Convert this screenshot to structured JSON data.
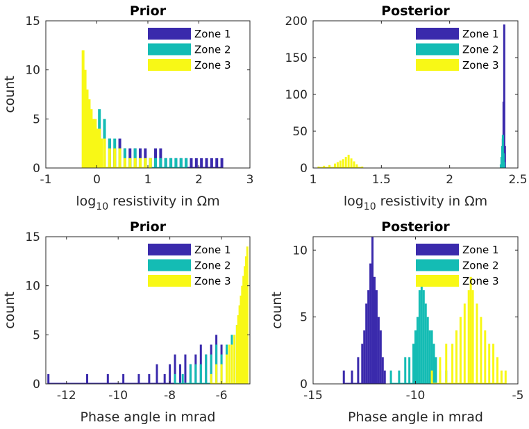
{
  "chart_data": [
    {
      "type": "bar",
      "title": "Prior",
      "xlabel": "log10 resistivity in Ωm",
      "xlabel_main": "log",
      "xlabel_sub": "10",
      "xlabel_rest": " resistivity in Ωm",
      "ylabel": "count",
      "xlim": [
        -1,
        3
      ],
      "ylim": [
        0,
        15
      ],
      "xticks": [
        "-1",
        "0",
        "1",
        "2",
        "3"
      ],
      "yticks": [
        "0",
        "5",
        "10",
        "15"
      ],
      "grid": false,
      "legend_position": "top-right",
      "series": [
        {
          "name": "Zone 1",
          "color": "#3a2aac",
          "x": [
            0.05,
            0.15,
            0.25,
            0.35,
            0.45,
            0.55,
            0.65,
            0.75,
            0.85,
            0.95,
            1.05,
            1.15,
            1.25,
            1.35,
            1.45,
            1.55,
            1.65,
            1.75,
            1.85,
            1.95,
            2.05,
            2.15,
            2.25,
            2.35,
            2.45
          ],
          "y": [
            4,
            4,
            3,
            2,
            3,
            2,
            2,
            2,
            2,
            2,
            1,
            2,
            2,
            1,
            1,
            1,
            1,
            1,
            1,
            1,
            1,
            1,
            1,
            1,
            1
          ]
        },
        {
          "name": "Zone 2",
          "color": "#14bcb4",
          "x": [
            -0.25,
            -0.15,
            -0.05,
            0.05,
            0.15,
            0.25,
            0.35,
            0.45,
            0.55,
            0.65,
            0.75,
            0.85,
            0.95,
            1.05,
            1.15,
            1.25,
            1.35,
            1.45,
            1.55,
            1.65,
            1.75
          ],
          "y": [
            6,
            5,
            4,
            6,
            5,
            3,
            3,
            2,
            2,
            1,
            2,
            1,
            1,
            1,
            1,
            1,
            1,
            1,
            1,
            1,
            1
          ]
        },
        {
          "name": "Zone 3",
          "color": "#f8f816",
          "x": [
            -0.27,
            -0.23,
            -0.19,
            -0.15,
            -0.11,
            -0.07,
            -0.03,
            0.01,
            0.05,
            0.09,
            0.15,
            0.25,
            0.35,
            0.45,
            0.55,
            0.65,
            0.75,
            0.85,
            0.95,
            1.05
          ],
          "y": [
            12,
            10,
            8,
            7,
            6,
            5,
            5,
            4,
            4,
            3,
            3,
            2,
            2,
            2,
            1,
            1,
            1,
            1,
            1,
            1
          ]
        }
      ]
    },
    {
      "type": "bar",
      "title": "Posterior",
      "xlabel": "log10 resistivity in Ωm",
      "xlabel_main": "log",
      "xlabel_sub": "10",
      "xlabel_rest": " resistivity in Ωm",
      "ylabel": "",
      "xlim": [
        1,
        2.5
      ],
      "ylim": [
        0,
        200
      ],
      "xticks": [
        "1",
        "1.5",
        "2",
        "2.5"
      ],
      "yticks": [
        "0",
        "50",
        "100",
        "150",
        "200"
      ],
      "grid": false,
      "legend_position": "top-right",
      "series": [
        {
          "name": "Zone 1",
          "color": "#3a2aac",
          "x": [
            2.385,
            2.39,
            2.395,
            2.4,
            2.405
          ],
          "y": [
            10,
            40,
            90,
            195,
            30
          ]
        },
        {
          "name": "Zone 2",
          "color": "#14bcb4",
          "x": [
            2.375,
            2.38,
            2.385,
            2.39,
            2.395,
            2.4
          ],
          "y": [
            5,
            15,
            30,
            45,
            20,
            8
          ]
        },
        {
          "name": "Zone 3",
          "color": "#f8f816",
          "x": [
            1.04,
            1.08,
            1.12,
            1.16,
            1.18,
            1.2,
            1.22,
            1.24,
            1.26,
            1.28,
            1.3,
            1.32,
            1.36
          ],
          "y": [
            2,
            3,
            4,
            6,
            8,
            10,
            12,
            15,
            18,
            13,
            9,
            5,
            2
          ]
        }
      ]
    },
    {
      "type": "bar",
      "title": "Prior",
      "xlabel": "Phase angle in mrad",
      "ylabel": "count",
      "xlim": [
        -12.8,
        -4.9
      ],
      "ylim": [
        0,
        15
      ],
      "xticks": [
        "-12",
        "-10",
        "-8",
        "-6"
      ],
      "yticks": [
        "0",
        "5",
        "10",
        "15"
      ],
      "grid": false,
      "legend_position": "top-right",
      "series": [
        {
          "name": "Zone 1",
          "color": "#3a2aac",
          "x": [
            -12.7,
            -11.2,
            -10.4,
            -9.8,
            -9.2,
            -8.8,
            -8.5,
            -8.2,
            -8.0,
            -7.8,
            -7.6,
            -7.4,
            -7.2,
            -7.0,
            -6.8,
            -6.6,
            -6.4,
            -6.2,
            -6.0
          ],
          "y": [
            1,
            1,
            1,
            1,
            1,
            1,
            2,
            1,
            2,
            3,
            2,
            3,
            2,
            3,
            4,
            3,
            4,
            5,
            4
          ]
        },
        {
          "name": "Zone 2",
          "color": "#14bcb4",
          "x": [
            -7.8,
            -7.5,
            -7.2,
            -7.0,
            -6.8,
            -6.6,
            -6.4,
            -6.2,
            -6.0,
            -5.8,
            -5.6,
            -5.4
          ],
          "y": [
            1,
            1,
            2,
            2,
            2,
            3,
            3,
            4,
            3,
            4,
            5,
            6
          ]
        },
        {
          "name": "Zone 3",
          "color": "#f8f816",
          "x": [
            -6.4,
            -6.2,
            -6.0,
            -5.8,
            -5.7,
            -5.6,
            -5.5,
            -5.4,
            -5.35,
            -5.3,
            -5.25,
            -5.2,
            -5.15,
            -5.1,
            -5.05,
            -5.0
          ],
          "y": [
            1,
            2,
            2,
            3,
            4,
            4,
            5,
            6,
            7,
            8,
            9,
            10,
            11,
            12,
            13,
            14
          ]
        }
      ]
    },
    {
      "type": "bar",
      "title": "Posterior",
      "xlabel": "Phase angle in mrad",
      "ylabel": "count",
      "xlim": [
        -15,
        -5
      ],
      "ylim": [
        0,
        11
      ],
      "xticks": [
        "-15",
        "-10",
        "-5"
      ],
      "yticks": [
        "0",
        "5",
        "10"
      ],
      "grid": false,
      "legend_position": "top-right",
      "series": [
        {
          "name": "Zone 1",
          "color": "#3a2aac",
          "x": [
            -13.5,
            -13.1,
            -12.8,
            -12.6,
            -12.5,
            -12.4,
            -12.3,
            -12.2,
            -12.1,
            -12.0,
            -11.9,
            -11.8,
            -11.7,
            -11.6,
            -11.5
          ],
          "y": [
            1,
            1,
            2,
            3,
            4,
            6,
            7,
            9,
            11,
            8,
            7,
            5,
            4,
            2,
            1
          ]
        },
        {
          "name": "Zone 2",
          "color": "#14bcb4",
          "x": [
            -11.2,
            -10.8,
            -10.5,
            -10.3,
            -10.1,
            -10.0,
            -9.9,
            -9.8,
            -9.7,
            -9.6,
            -9.5,
            -9.4,
            -9.3,
            -9.2,
            -9.1,
            -9.0,
            -8.8,
            -8.5
          ],
          "y": [
            1,
            1,
            2,
            2,
            3,
            4,
            5,
            7,
            8,
            7,
            6,
            5,
            4,
            4,
            3,
            2,
            1,
            1
          ]
        },
        {
          "name": "Zone 3",
          "color": "#f8f816",
          "x": [
            -9.2,
            -8.8,
            -8.5,
            -8.2,
            -8.0,
            -7.8,
            -7.6,
            -7.4,
            -7.3,
            -7.2,
            -7.0,
            -6.8,
            -6.6,
            -6.4,
            -6.2,
            -6.0,
            -5.8,
            -5.6
          ],
          "y": [
            1,
            2,
            3,
            3,
            4,
            5,
            6,
            7,
            8,
            7,
            6,
            5,
            4,
            3,
            3,
            2,
            1,
            1
          ]
        }
      ]
    }
  ]
}
